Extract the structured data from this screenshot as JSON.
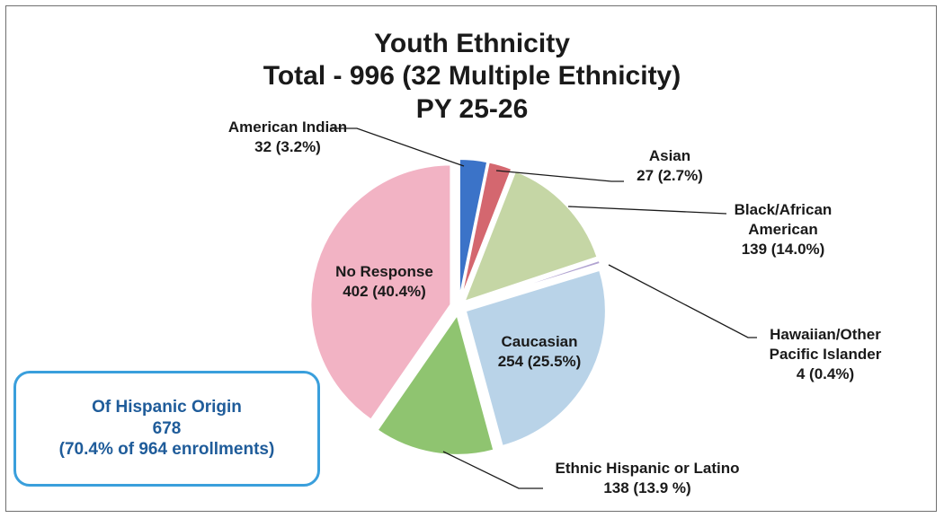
{
  "chart_data": {
    "type": "pie",
    "title_lines": [
      "Youth Ethnicity",
      "Total - 996 (32 Multiple Ethnicity)",
      "PY 25-26"
    ],
    "slices": [
      {
        "key": "american_indian",
        "label_lines": [
          "American Indian",
          "32 (3.2%)"
        ],
        "value": 32,
        "color": "#3b73c8"
      },
      {
        "key": "asian",
        "label_lines": [
          "Asian",
          "27 (2.7%)"
        ],
        "value": 27,
        "color": "#d4676f"
      },
      {
        "key": "black",
        "label_lines": [
          "Black/African",
          "American",
          "139 (14.0%)"
        ],
        "value": 139,
        "color": "#c5d6a5"
      },
      {
        "key": "hawaiian",
        "label_lines": [
          "Hawaiian/Other",
          "Pacific Islander",
          "4 (0.4%)"
        ],
        "value": 4,
        "color": "#b1a3d1"
      },
      {
        "key": "caucasian",
        "label_lines": [
          "Caucasian",
          "254 (25.5%)"
        ],
        "value": 254,
        "color": "#b9d3e8"
      },
      {
        "key": "hispanic",
        "label_lines": [
          "Ethnic Hispanic or Latino",
          "138 (13.9 %)"
        ],
        "value": 138,
        "color": "#8fc470"
      },
      {
        "key": "no_response",
        "label_lines": [
          "No Response",
          "402 (40.4%)"
        ],
        "value": 402,
        "color": "#f2b3c4"
      }
    ]
  },
  "hispanic_box": {
    "line1": "Of Hispanic Origin",
    "line2": "678",
    "line3": "(70.4% of 964 enrollments)"
  }
}
